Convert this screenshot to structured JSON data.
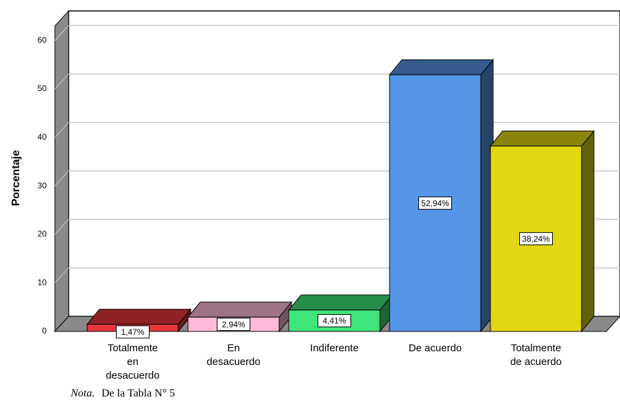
{
  "chart_data": {
    "type": "bar3d",
    "y_label": "Porcentaje",
    "categories": [
      "Totalmente en desacuerdo",
      "En desacuerdo",
      "Indiferente",
      "De acuerdo",
      "Totalmente de acuerdo"
    ],
    "values": [
      1.47,
      2.94,
      4.41,
      52.94,
      38.24
    ],
    "value_labels": [
      "1,47%",
      "2,94%",
      "4,41%",
      "52,94%",
      "38,24%"
    ],
    "colors": [
      "#e8363c",
      "#fdb9d7",
      "#40e57a",
      "#5596e6",
      "#e1d712"
    ],
    "ylim": [
      0,
      63
    ],
    "yticks": [
      0,
      10,
      20,
      30,
      40,
      50,
      60
    ],
    "grid": true,
    "note_label": "Nota.",
    "note": "De la Tabla N° 5"
  }
}
